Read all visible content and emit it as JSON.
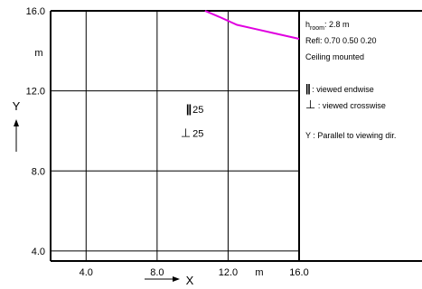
{
  "chart_data": {
    "type": "diagram",
    "y_unit": "m",
    "x_unit": "m",
    "x_axis_label": "X",
    "y_axis_label": "Y",
    "x_range": [
      2.0,
      16.0
    ],
    "y_range": [
      3.5,
      16.0
    ],
    "x_ticks": [
      "4.0",
      "8.0",
      "12.0",
      "16.0"
    ],
    "y_ticks": [
      "4.0",
      "8.0",
      "12.0",
      "16.0"
    ],
    "grid": true,
    "curve": {
      "color": "#e000e0",
      "points": [
        [
          10.7,
          16.0
        ],
        [
          11.5,
          15.7
        ],
        [
          12.5,
          15.3
        ],
        [
          13.5,
          15.1
        ],
        [
          14.5,
          14.9
        ],
        [
          16.0,
          14.6
        ]
      ]
    },
    "markers": [
      {
        "symbol": "||",
        "value": "25",
        "x": 10.0,
        "y": 10.9
      },
      {
        "symbol": "⊥",
        "value": "25",
        "x": 10.0,
        "y": 9.7
      }
    ]
  },
  "legend": {
    "hroom_main": "h",
    "hroom_sub": "room",
    "hroom_value": ": 2.8 m",
    "refl": "Refl: 0.70 0.50 0.20",
    "mounting": "Ceiling mounted",
    "endwise_symbol": "||",
    "endwise_text": ": viewed endwise",
    "crosswise_symbol": "⊥",
    "crosswise_text": ": viewed crosswise",
    "y_symbol": "Y",
    "y_text": ": Parallel to viewing dir."
  }
}
